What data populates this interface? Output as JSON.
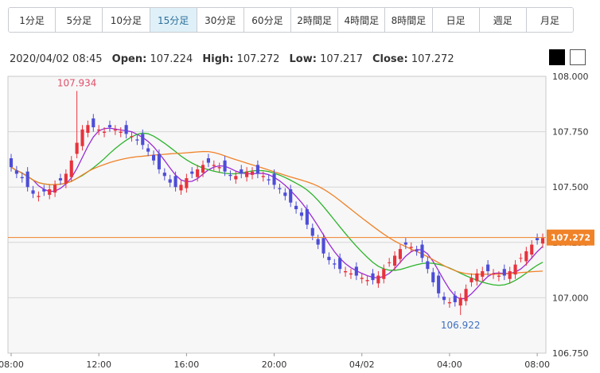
{
  "timeframes": [
    "1分足",
    "5分足",
    "10分足",
    "15分足",
    "30分足",
    "60分足",
    "2時間足",
    "4時間足",
    "8時間足",
    "日足",
    "週足",
    "月足"
  ],
  "active_timeframe": "15分足",
  "header": {
    "datetime": "2020/04/02 08:45",
    "open_label": "Open:",
    "open": "107.224",
    "high_label": "High:",
    "high": "107.272",
    "low_label": "Low:",
    "low": "107.217",
    "close_label": "Close:",
    "close": "107.272"
  },
  "theme_buttons": [
    "dark",
    "light"
  ],
  "chart_data": {
    "type": "candlestick",
    "y_ticks": [
      "108.000",
      "107.750",
      "107.500",
      "107.250",
      "107.000",
      "106.750"
    ],
    "ylim": [
      106.75,
      108.0
    ],
    "x_ticks": [
      {
        "label": "08:00",
        "index": 0
      },
      {
        "label": "12:00",
        "index": 16
      },
      {
        "label": "16:00",
        "index": 32
      },
      {
        "label": "20:00",
        "index": 48
      },
      {
        "label": "04/02",
        "index": 64
      },
      {
        "label": "04:00",
        "index": 80
      },
      {
        "label": "08:00",
        "index": 96
      }
    ],
    "current_price": 107.272,
    "current_price_label": "107.272",
    "annotations": [
      {
        "text": "107.934",
        "index": 12,
        "value": 107.934,
        "kind": "high"
      },
      {
        "text": "106.922",
        "index": 82,
        "value": 106.922,
        "kind": "low"
      }
    ],
    "colors": {
      "up": "#e8323c",
      "down": "#4d4dd8",
      "ma_short": "#9a2bd6",
      "ma_mid": "#2bb42b",
      "ma_long": "#f08228",
      "current": "#f08228"
    },
    "closes": [
      107.59,
      107.56,
      107.54,
      107.5,
      107.47,
      107.46,
      107.48,
      107.49,
      107.51,
      107.53,
      107.56,
      107.62,
      107.7,
      107.76,
      107.78,
      107.77,
      107.76,
      107.75,
      107.77,
      107.76,
      107.75,
      107.74,
      107.73,
      107.71,
      107.69,
      107.66,
      107.62,
      107.58,
      107.55,
      107.52,
      107.5,
      107.51,
      107.54,
      107.56,
      107.58,
      107.6,
      107.61,
      107.6,
      107.59,
      107.57,
      107.55,
      107.55,
      107.56,
      107.57,
      107.57,
      107.56,
      107.55,
      107.53,
      107.51,
      107.49,
      107.46,
      107.43,
      107.4,
      107.37,
      107.33,
      107.28,
      107.24,
      107.2,
      107.17,
      107.15,
      107.13,
      107.12,
      107.11,
      107.1,
      107.09,
      107.08,
      107.08,
      107.1,
      107.13,
      107.16,
      107.19,
      107.22,
      107.24,
      107.23,
      107.21,
      107.18,
      107.13,
      107.07,
      107.02,
      106.99,
      106.98,
      106.98,
      107.0,
      107.04,
      107.09,
      107.11,
      107.12,
      107.12,
      107.11,
      107.1,
      107.1,
      107.12,
      107.15,
      107.18,
      107.21,
      107.24,
      107.26,
      107.27
    ]
  }
}
